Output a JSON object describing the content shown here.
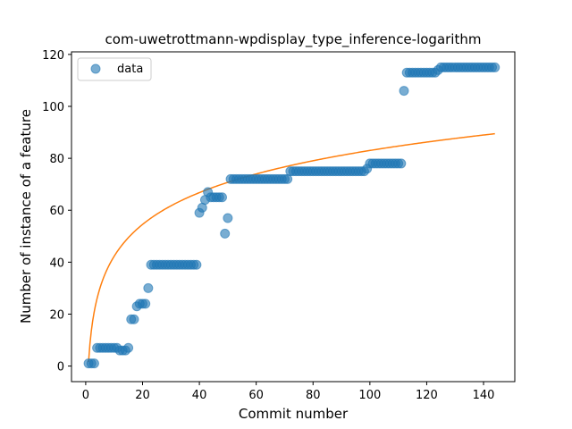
{
  "chart_data": {
    "type": "scatter",
    "title": "com-uwetrottmann-wpdisplay_type_inference-logarithm",
    "xlabel": "Commit number",
    "ylabel": "Number of instance of a feature",
    "xlim": [
      -5,
      151
    ],
    "ylim": [
      -6,
      121
    ],
    "xticks": [
      0,
      20,
      40,
      60,
      80,
      100,
      120,
      140
    ],
    "yticks": [
      0,
      20,
      40,
      60,
      80,
      100,
      120
    ],
    "grid": false,
    "legend": {
      "placement": "top-left",
      "entries": [
        "data"
      ]
    },
    "colors": {
      "data": "#1f77b4",
      "fit": "#ff7f0e"
    },
    "series": [
      {
        "name": "data",
        "kind": "scatter",
        "x": [
          1,
          2,
          3,
          4,
          5,
          6,
          7,
          8,
          9,
          10,
          11,
          12,
          13,
          14,
          15,
          16,
          17,
          18,
          19,
          20,
          21,
          22,
          23,
          24,
          25,
          26,
          27,
          28,
          29,
          30,
          31,
          32,
          33,
          34,
          35,
          36,
          37,
          38,
          39,
          40,
          41,
          42,
          43,
          44,
          45,
          46,
          47,
          48,
          49,
          50,
          51,
          52,
          53,
          54,
          55,
          56,
          57,
          58,
          59,
          60,
          61,
          62,
          63,
          64,
          65,
          66,
          67,
          68,
          69,
          70,
          71,
          72,
          73,
          74,
          75,
          76,
          77,
          78,
          79,
          80,
          81,
          82,
          83,
          84,
          85,
          86,
          87,
          88,
          89,
          90,
          91,
          92,
          93,
          94,
          95,
          96,
          97,
          98,
          99,
          100,
          101,
          102,
          103,
          104,
          105,
          106,
          107,
          108,
          109,
          110,
          111,
          112,
          113,
          114,
          115,
          116,
          117,
          118,
          119,
          120,
          121,
          122,
          123,
          124,
          125,
          126,
          127,
          128,
          129,
          130,
          131,
          132,
          133,
          134,
          135,
          136,
          137,
          138,
          139,
          140,
          141,
          142,
          143,
          144
        ],
        "y": [
          1,
          1,
          1,
          7,
          7,
          7,
          7,
          7,
          7,
          7,
          7,
          6,
          6,
          6,
          7,
          18,
          18,
          23,
          24,
          24,
          24,
          30,
          39,
          39,
          39,
          39,
          39,
          39,
          39,
          39,
          39,
          39,
          39,
          39,
          39,
          39,
          39,
          39,
          39,
          59,
          61,
          64,
          67,
          65,
          65,
          65,
          65,
          65,
          51,
          57,
          72,
          72,
          72,
          72,
          72,
          72,
          72,
          72,
          72,
          72,
          72,
          72,
          72,
          72,
          72,
          72,
          72,
          72,
          72,
          72,
          72,
          75,
          75,
          75,
          75,
          75,
          75,
          75,
          75,
          75,
          75,
          75,
          75,
          75,
          75,
          75,
          75,
          75,
          75,
          75,
          75,
          75,
          75,
          75,
          75,
          75,
          75,
          75,
          76,
          78,
          78,
          78,
          78,
          78,
          78,
          78,
          78,
          78,
          78,
          78,
          78,
          106,
          113,
          113,
          113,
          113,
          113,
          113,
          113,
          113,
          113,
          113,
          113,
          114,
          115,
          115,
          115,
          115,
          115,
          115,
          115,
          115,
          115,
          115,
          115,
          115,
          115,
          115,
          115,
          115,
          115,
          115,
          115,
          115
        ]
      },
      {
        "name": "",
        "kind": "line",
        "model": "logarithm",
        "x_range": [
          1,
          144
        ],
        "params": {
          "a": 1.5,
          "b": 17.7
        }
      }
    ]
  }
}
